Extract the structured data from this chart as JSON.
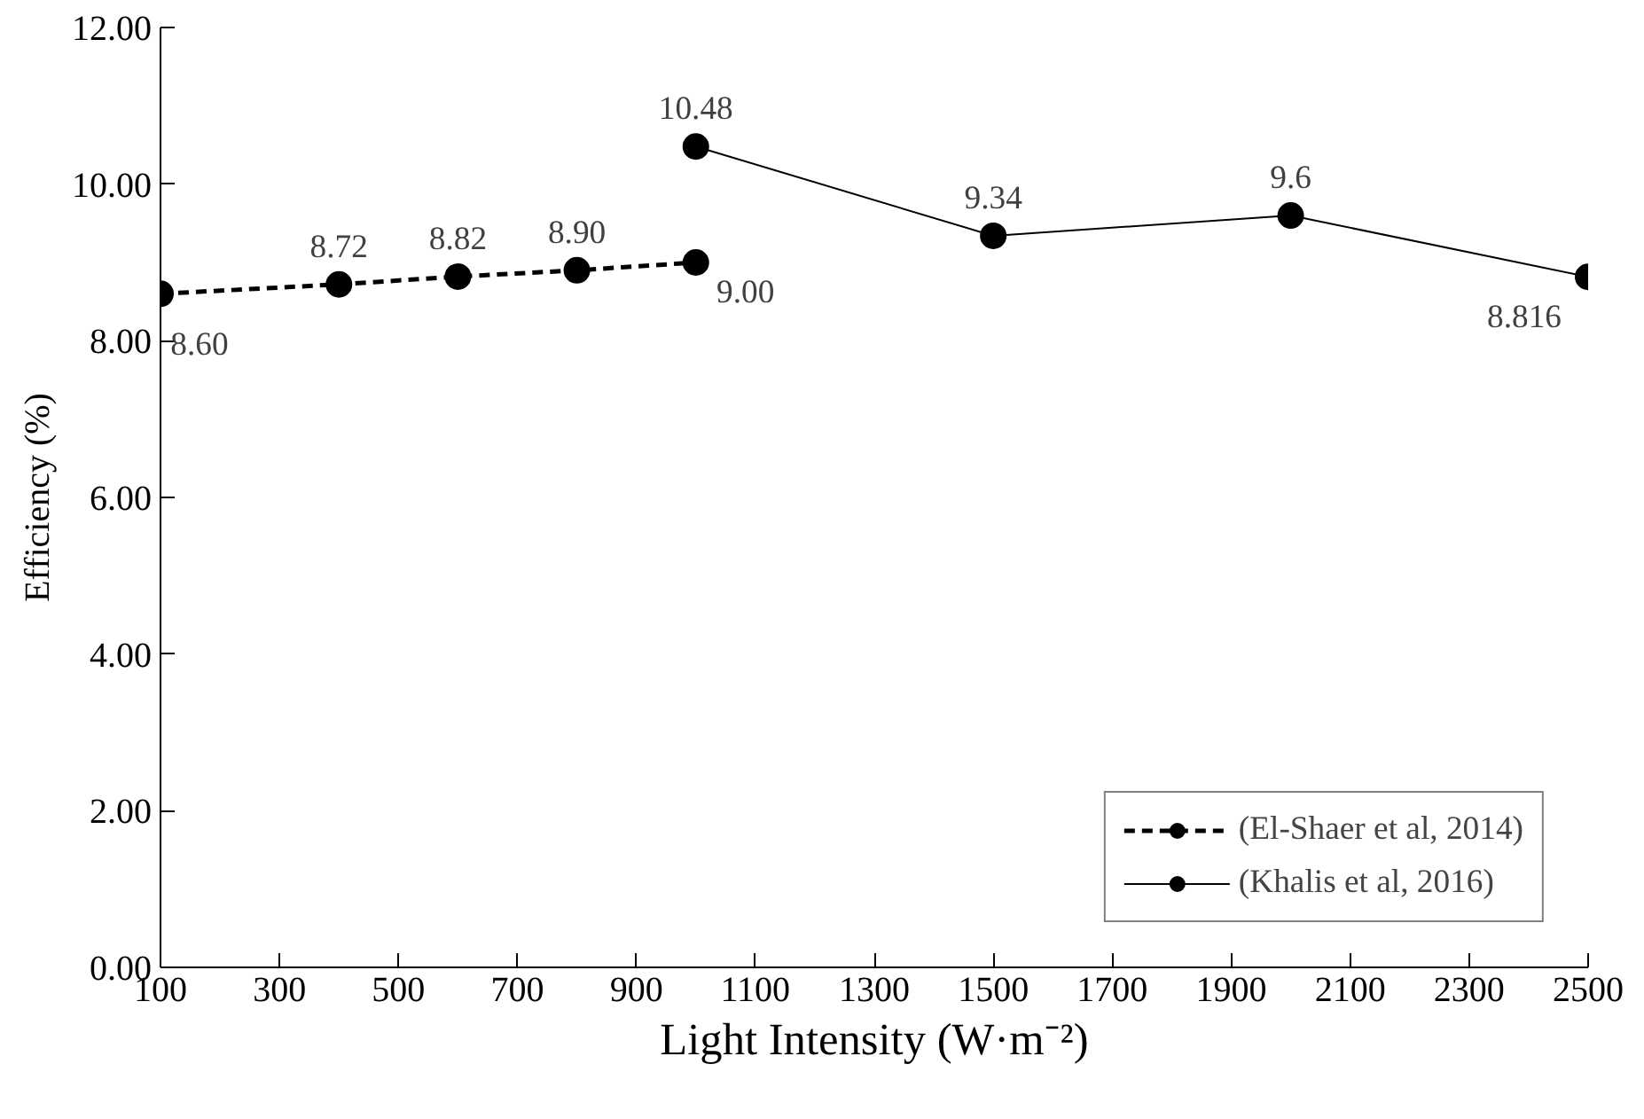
{
  "chart_data": {
    "type": "line",
    "xlabel": "Light Intensity (W·m⁻²)",
    "ylabel": "Efficiency (%)",
    "xlim": [
      100,
      2500
    ],
    "xticks": [
      100,
      300,
      500,
      700,
      900,
      1100,
      1300,
      1500,
      1700,
      1900,
      2100,
      2300,
      2500
    ],
    "ylim": [
      0,
      12
    ],
    "yticks": [
      {
        "value": 0,
        "label": "0.00"
      },
      {
        "value": 2,
        "label": "2.00"
      },
      {
        "value": 4,
        "label": "4.00"
      },
      {
        "value": 6,
        "label": "6.00"
      },
      {
        "value": 8,
        "label": "8.00"
      },
      {
        "value": 10,
        "label": "10.00"
      },
      {
        "value": 12,
        "label": "12.00"
      }
    ],
    "grid": false,
    "legend": "bottom right",
    "marker": "circle",
    "series": [
      {
        "name": "(El-Shaer et al, 2014)",
        "color": "#000000",
        "line_style": "dashed",
        "x": [
          100,
          400,
          600,
          800,
          1000
        ],
        "values": [
          8.6,
          8.72,
          8.82,
          8.9,
          9.0
        ],
        "value_labels": [
          "8.60",
          "8.72",
          "8.82",
          "8.90",
          "9.00"
        ]
      },
      {
        "name": "(Khalis et al, 2016)",
        "color": "#000000",
        "line_style": "solid",
        "x": [
          1000,
          1500,
          2000,
          2500
        ],
        "values": [
          10.48,
          9.34,
          9.6,
          8.816
        ],
        "value_labels": [
          "10.48",
          "9.34",
          "9.6",
          "8.816"
        ]
      }
    ]
  }
}
